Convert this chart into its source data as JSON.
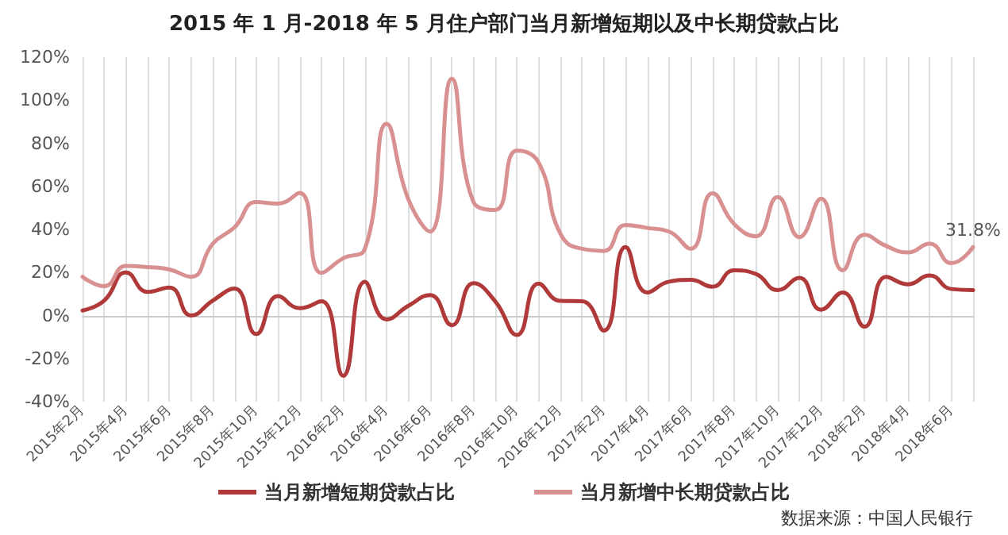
{
  "chart_data": {
    "type": "line",
    "title": "2015 年 1 月-2018 年 5 月住户部门当月新增短期以及中长期贷款占比",
    "categories": [
      "2015年2月",
      null,
      "2015年4月",
      null,
      "2015年6月",
      null,
      "2015年8月",
      null,
      "2015年10月",
      null,
      "2015年12月",
      null,
      "2016年2月",
      null,
      "2016年4月",
      null,
      "2016年6月",
      null,
      "2016年8月",
      null,
      "2016年10月",
      null,
      "2016年12月",
      null,
      "2017年2月",
      null,
      "2017年4月",
      null,
      "2017年6月",
      null,
      "2017年8月",
      null,
      "2017年10月",
      null,
      "2017年12月",
      null,
      "2018年2月",
      null,
      "2018年4月",
      null,
      "2018年6月",
      null
    ],
    "series": [
      {
        "name": "当月新增短期贷款占比",
        "color": "#b03a3a",
        "values": [
          2.3,
          7,
          20,
          11,
          13,
          0,
          7,
          12.5,
          -8.6,
          9,
          3.4,
          6.6,
          -28,
          15.7,
          -1.8,
          4.5,
          9.5,
          -4.5,
          15,
          6.6,
          -9,
          14.8,
          6.8,
          6.6,
          -7,
          31.8,
          10.7,
          15.7,
          16.6,
          13.4,
          21,
          19.3,
          11.8,
          17.5,
          2.7,
          10.7,
          -5.2,
          18,
          14.5,
          18.6,
          12.3,
          11.8
        ]
      },
      {
        "name": "当月新增中长期贷款占比",
        "color": "#d99090",
        "values": [
          18,
          13.6,
          23,
          22.5,
          21.4,
          18,
          33.4,
          41,
          52.7,
          52,
          57,
          19.8,
          26.6,
          31,
          89,
          54,
          39,
          110,
          52.7,
          49,
          76.6,
          71,
          38,
          31,
          30,
          42,
          40.7,
          39,
          31,
          56.8,
          42.5,
          36.8,
          55,
          36.4,
          54.3,
          21,
          37.5,
          32.3,
          29.3,
          33.4,
          24.3,
          31.8
        ],
        "value_labels": [
          null,
          null,
          null,
          null,
          null,
          null,
          null,
          null,
          null,
          null,
          null,
          null,
          null,
          null,
          null,
          null,
          null,
          null,
          null,
          null,
          null,
          null,
          null,
          null,
          null,
          null,
          null,
          null,
          null,
          null,
          null,
          null,
          null,
          null,
          null,
          null,
          null,
          null,
          null,
          null,
          null,
          "31.8%"
        ]
      }
    ],
    "ylim": [
      -40,
      120
    ],
    "yticks": [
      {
        "value": -40,
        "label": "-40%"
      },
      {
        "value": -20,
        "label": "-20%"
      },
      {
        "value": 0,
        "label": "0%"
      },
      {
        "value": 20,
        "label": "20%"
      },
      {
        "value": 40,
        "label": "40%"
      },
      {
        "value": 60,
        "label": "60%"
      },
      {
        "value": 80,
        "label": "80%"
      },
      {
        "value": 100,
        "label": "100%"
      },
      {
        "value": 120,
        "label": "120%"
      }
    ],
    "grid": "x",
    "legend": "bottom",
    "marker": "none",
    "line_style": "solid",
    "annotations": [
      "数据来源：中国人民银行"
    ]
  }
}
